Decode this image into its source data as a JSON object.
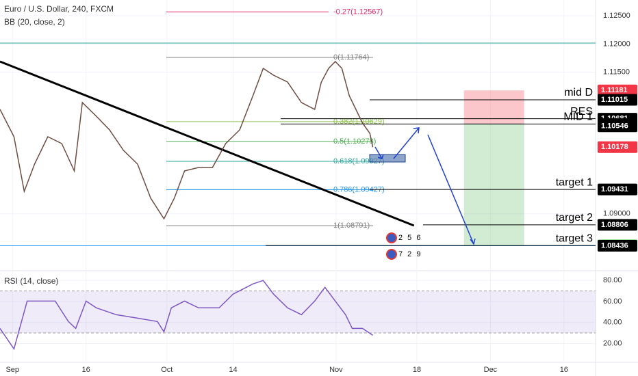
{
  "chart_data": [
    {
      "type": "line",
      "title": "Euro / U.S. Dollar, 240, FXCM",
      "subtitle": "BB (20, close, 2)",
      "color": "#6d4c41",
      "x": [
        -1.7,
        0.2,
        1.6,
        3.0,
        4.8,
        6.7,
        8.4,
        9.5,
        11.4,
        13.2,
        15.1,
        17.0,
        18.8,
        20.6,
        22.0,
        23.4,
        25.3,
        27.2,
        29.0,
        30.9,
        32.7,
        34.1,
        35.5,
        37.4,
        39.3,
        41.1,
        42.0,
        43.0,
        43.9,
        44.8,
        45.8,
        46.7,
        47.6,
        48.6,
        49.0
      ],
      "values": [
        1.10845,
        1.10362,
        1.09396,
        1.09879,
        1.10362,
        1.10242,
        1.09758,
        1.10966,
        1.10725,
        1.10483,
        1.10121,
        1.09879,
        1.09275,
        1.08913,
        1.09275,
        1.09758,
        1.09819,
        1.09819,
        1.10242,
        1.10483,
        1.11087,
        1.1157,
        1.11449,
        1.11329,
        1.10966,
        1.10845,
        1.11329,
        1.1157,
        1.11691,
        1.1157,
        1.11087,
        1.10845,
        1.10604,
        1.10423,
        1.10178
      ],
      "xlim": [
        -1.7,
        79.3
      ],
      "ylim": [
        1.08007,
        1.12778
      ],
      "yticks": [
        {
          "value": 1.125,
          "label": "1.12500"
        },
        {
          "value": 1.12,
          "label": "1.12000"
        },
        {
          "value": 1.115,
          "label": "1.11500"
        },
        {
          "value": 1.09,
          "label": "1.09000"
        }
      ],
      "grid": true,
      "hlines": [
        {
          "value": 1.12017,
          "color": "#26a69a"
        },
        {
          "value": 1.08436,
          "color": "#2196f3"
        }
      ],
      "fib_levels": [
        {
          "label": "-0.27(1.12567)",
          "value": 1.12567,
          "color": "#e91e63"
        },
        {
          "label": "0(1.11764)",
          "value": 1.11764,
          "color": "#808080"
        },
        {
          "label": "0.382(1.10629)",
          "value": 1.10629,
          "color": "#8bc34a"
        },
        {
          "label": "0.5(1.10278)",
          "value": 1.10278,
          "color": "#4caf50"
        },
        {
          "label": "0.618(1.09927)",
          "value": 1.09927,
          "color": "#26a69a"
        },
        {
          "label": "0.786(1.09427)",
          "value": 1.09427,
          "color": "#2196f3"
        },
        {
          "label": "1(1.08791)",
          "value": 1.08791,
          "color": "#808080"
        }
      ],
      "trendline": {
        "x": [
          -1.7,
          54.6
        ],
        "values": [
          1.11691,
          1.08792
        ]
      },
      "annotations": [
        {
          "text": "mid D",
          "value": 1.11015
        },
        {
          "text": "RES",
          "value": 1.10681
        },
        {
          "text": "MID 1",
          "value": 1.10587
        },
        {
          "text": "target 1",
          "value": 1.09431
        },
        {
          "text": "target 2",
          "value": 1.08806
        },
        {
          "text": "target 3",
          "value": 1.08441
        }
      ],
      "position": {
        "x": [
          61.4,
          69.6
        ],
        "stop": 1.11181,
        "entry": 1.10587,
        "target": 1.08441
      },
      "price_labels": [
        {
          "value": 1.11181,
          "color": "#f23645"
        },
        {
          "value": 1.11015,
          "color": "#000000"
        },
        {
          "value": 1.10681,
          "color": "#000000"
        },
        {
          "value": 1.10587,
          "color": "#000000"
        },
        {
          "value": 1.10546,
          "color": "#000000"
        },
        {
          "value": 1.10178,
          "color": "#f23645"
        },
        {
          "value": 1.09431,
          "color": "#000000"
        },
        {
          "value": 1.08806,
          "color": "#000000"
        },
        {
          "value": 1.08441,
          "color": "#00b300"
        },
        {
          "value": 1.08436,
          "color": "#000000"
        }
      ],
      "events": [
        "2 5 6",
        "7 2 9"
      ]
    },
    {
      "type": "line",
      "title": "RSI (14, close)",
      "color": "#7e57c2",
      "x": [
        -1.7,
        0.2,
        2.0,
        3.9,
        5.8,
        7.6,
        8.6,
        10.0,
        11.4,
        14.1,
        17.0,
        19.7,
        20.6,
        21.6,
        23.4,
        25.3,
        28.1,
        30.0,
        31.8,
        32.7,
        34.1,
        35.5,
        37.4,
        39.3,
        41.1,
        42.5,
        43.9,
        45.3,
        46.2,
        47.6,
        49.0
      ],
      "values": [
        34.3,
        14.8,
        60.4,
        60.4,
        60.4,
        40.9,
        34.3,
        60.4,
        53.9,
        47.4,
        44.1,
        40.9,
        31.1,
        53.9,
        60.4,
        53.9,
        53.9,
        67.0,
        73.5,
        76.7,
        80.0,
        67.0,
        53.9,
        47.4,
        60.4,
        73.5,
        60.4,
        47.4,
        34.3,
        34.3,
        27.8
      ],
      "xlim": [
        -1.7,
        79.3
      ],
      "ylim": [
        2,
        88
      ],
      "yticks": [
        {
          "value": 80,
          "label": "80.00"
        },
        {
          "value": 60,
          "label": "60.00"
        },
        {
          "value": 40,
          "label": "40.00"
        },
        {
          "value": 20,
          "label": "20.00"
        }
      ],
      "band": [
        30,
        70
      ],
      "xticks": [
        {
          "value": 0,
          "label": "Sep"
        },
        {
          "value": 10,
          "label": "16"
        },
        {
          "value": 21,
          "label": "Oct"
        },
        {
          "value": 30,
          "label": "14"
        },
        {
          "value": 44,
          "label": "Nov"
        },
        {
          "value": 55,
          "label": "18"
        },
        {
          "value": 65,
          "label": "Dec"
        },
        {
          "value": 75,
          "label": "16"
        }
      ]
    }
  ]
}
